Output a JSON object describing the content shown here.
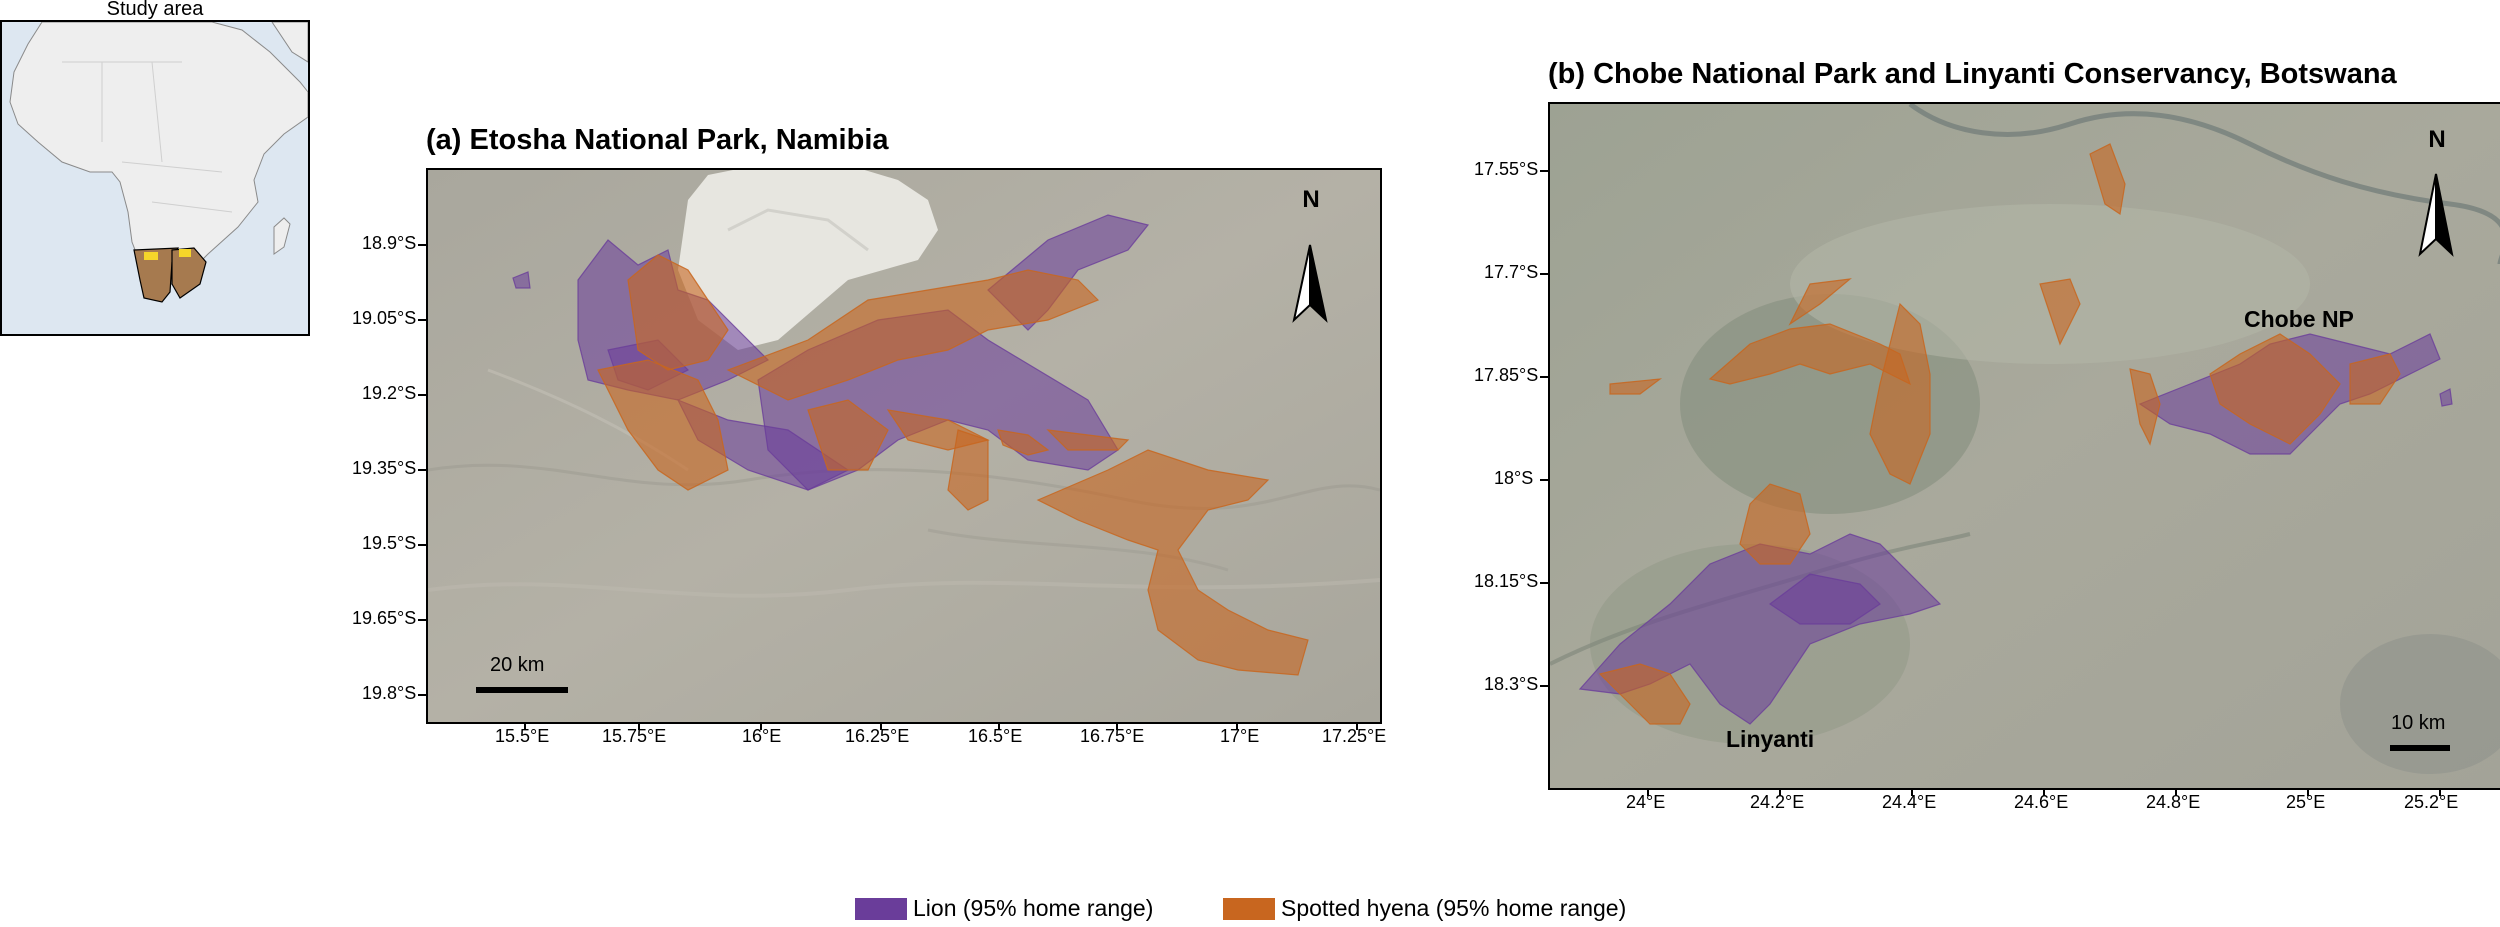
{
  "inset": {
    "title": "Study area",
    "land_color": "#eeeeee",
    "ocean_color": "#dde7f1",
    "study_country_color": "#a67a4f",
    "site_marker_color": "#f5d52a"
  },
  "panel_a": {
    "title": "(a) Etosha National Park, Namibia",
    "lat_ticks": [
      "18.9°S",
      "19.05°S",
      "19.2°S",
      "19.35°S",
      "19.5°S",
      "19.65°S",
      "19.8°S"
    ],
    "lon_ticks": [
      "15.5°E",
      "15.75°E",
      "16°E",
      "16.25°E",
      "16.5°E",
      "16.75°E",
      "17°E",
      "17.25°E"
    ],
    "north_label": "N",
    "scale_label": "20 km"
  },
  "panel_b": {
    "title": "(b) Chobe National Park and Linyanti Conservancy, Botswana",
    "lat_ticks": [
      "17.55°S",
      "17.7°S",
      "17.85°S",
      "18°S",
      "18.15°S",
      "18.3°S"
    ],
    "lon_ticks": [
      "24°E",
      "24.2°E",
      "24.4°E",
      "24.6°E",
      "24.8°E",
      "25°E",
      "25.2°E"
    ],
    "north_label": "N",
    "scale_label": "10 km",
    "places": [
      "Chobe NP",
      "Linyanti"
    ]
  },
  "legend": {
    "items": [
      {
        "label": "Lion (95% home range)",
        "color": "#6a3d9a"
      },
      {
        "label": "Spotted hyena (95% home range)",
        "color": "#c8661f"
      }
    ]
  },
  "colors": {
    "lion": "#6a3d9a",
    "hyena": "#c8661f",
    "frame": "#000000"
  }
}
